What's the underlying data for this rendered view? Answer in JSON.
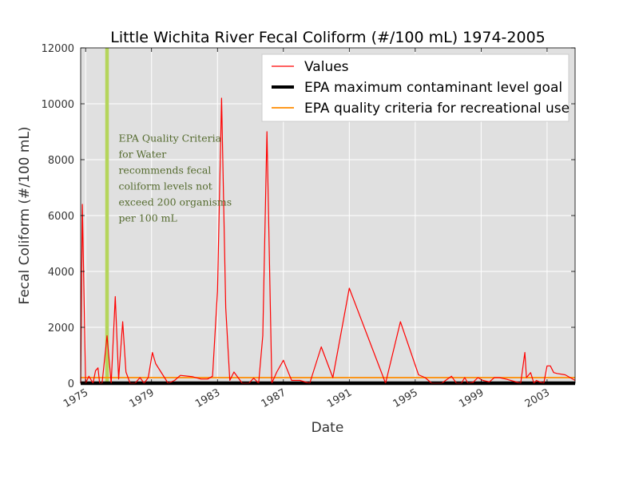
{
  "chart_data": {
    "type": "line",
    "title": "Little Wichita River Fecal Coliform (#/100 mL) 1974-2005",
    "xlabel": "Date",
    "ylabel": "Fecal Coliform (#/100 mL)",
    "xlim": [
      1974.7,
      2004.7
    ],
    "ylim": [
      0,
      12000
    ],
    "yticks": [
      0,
      2000,
      4000,
      6000,
      8000,
      10000,
      12000
    ],
    "xticks": [
      1975,
      1979,
      1983,
      1987,
      1991,
      1995,
      1999,
      2003
    ],
    "grid": true,
    "legend_position": "top-right",
    "series": [
      {
        "name": "Values",
        "color": "#ff0000",
        "x": [
          1974.7,
          1974.8,
          1975.0,
          1975.2,
          1975.45,
          1975.6,
          1975.75,
          1975.85,
          1976.0,
          1976.3,
          1976.55,
          1976.8,
          1977.0,
          1977.25,
          1977.45,
          1977.7,
          1978.0,
          1978.3,
          1978.55,
          1978.8,
          1979.05,
          1979.25,
          1980.0,
          1980.4,
          1980.75,
          1981.5,
          1982.0,
          1982.4,
          1982.7,
          1983.0,
          1983.25,
          1983.5,
          1983.75,
          1984.0,
          1984.5,
          1984.9,
          1985.2,
          1985.5,
          1985.75,
          1986.0,
          1986.3,
          1986.6,
          1987.0,
          1987.5,
          1988.0,
          1988.6,
          1989.3,
          1990.0,
          1991.0,
          1993.2,
          1994.1,
          1995.2,
          1995.6,
          1996.0,
          1996.6,
          1997.2,
          1997.5,
          1997.8,
          1998.0,
          1998.2,
          1998.5,
          1998.8,
          1999.1,
          1999.5,
          1999.8,
          2000.1,
          2000.5,
          2001.4,
          2001.65,
          2001.75,
          2002.0,
          2002.2,
          2002.35,
          2002.55,
          2002.8,
          2003.0,
          2003.2,
          2003.4,
          2003.6,
          2004.1,
          2004.7
        ],
        "y": [
          0,
          6400,
          0,
          250,
          0,
          450,
          550,
          0,
          0,
          1700,
          0,
          3100,
          150,
          2200,
          400,
          0,
          0,
          200,
          0,
          200,
          1100,
          700,
          0,
          100,
          280,
          230,
          150,
          150,
          250,
          3300,
          10200,
          2700,
          100,
          400,
          0,
          0,
          180,
          0,
          1700,
          9000,
          0,
          400,
          820,
          100,
          100,
          0,
          1300,
          200,
          3400,
          0,
          2200,
          300,
          200,
          0,
          0,
          250,
          0,
          0,
          200,
          0,
          30,
          200,
          100,
          50,
          200,
          200,
          150,
          0,
          1100,
          200,
          380,
          0,
          100,
          50,
          0,
          620,
          620,
          380,
          350,
          300,
          100
        ]
      },
      {
        "name": "EPA maximum contaminant level goal",
        "color": "#000000",
        "value": 0
      },
      {
        "name": "EPA quality criteria for recreational use",
        "color": "#ff8c00",
        "value": 200
      }
    ],
    "highlight": {
      "x": 1976.3,
      "color": "#b5d55b"
    },
    "annotation": {
      "x": 1977.0,
      "y": 8650,
      "lines": [
        "EPA Quality Criteria",
        "for Water",
        "recommends fecal",
        "coliform levels not",
        "exceed 200 organisms",
        "per 100 mL"
      ]
    }
  }
}
